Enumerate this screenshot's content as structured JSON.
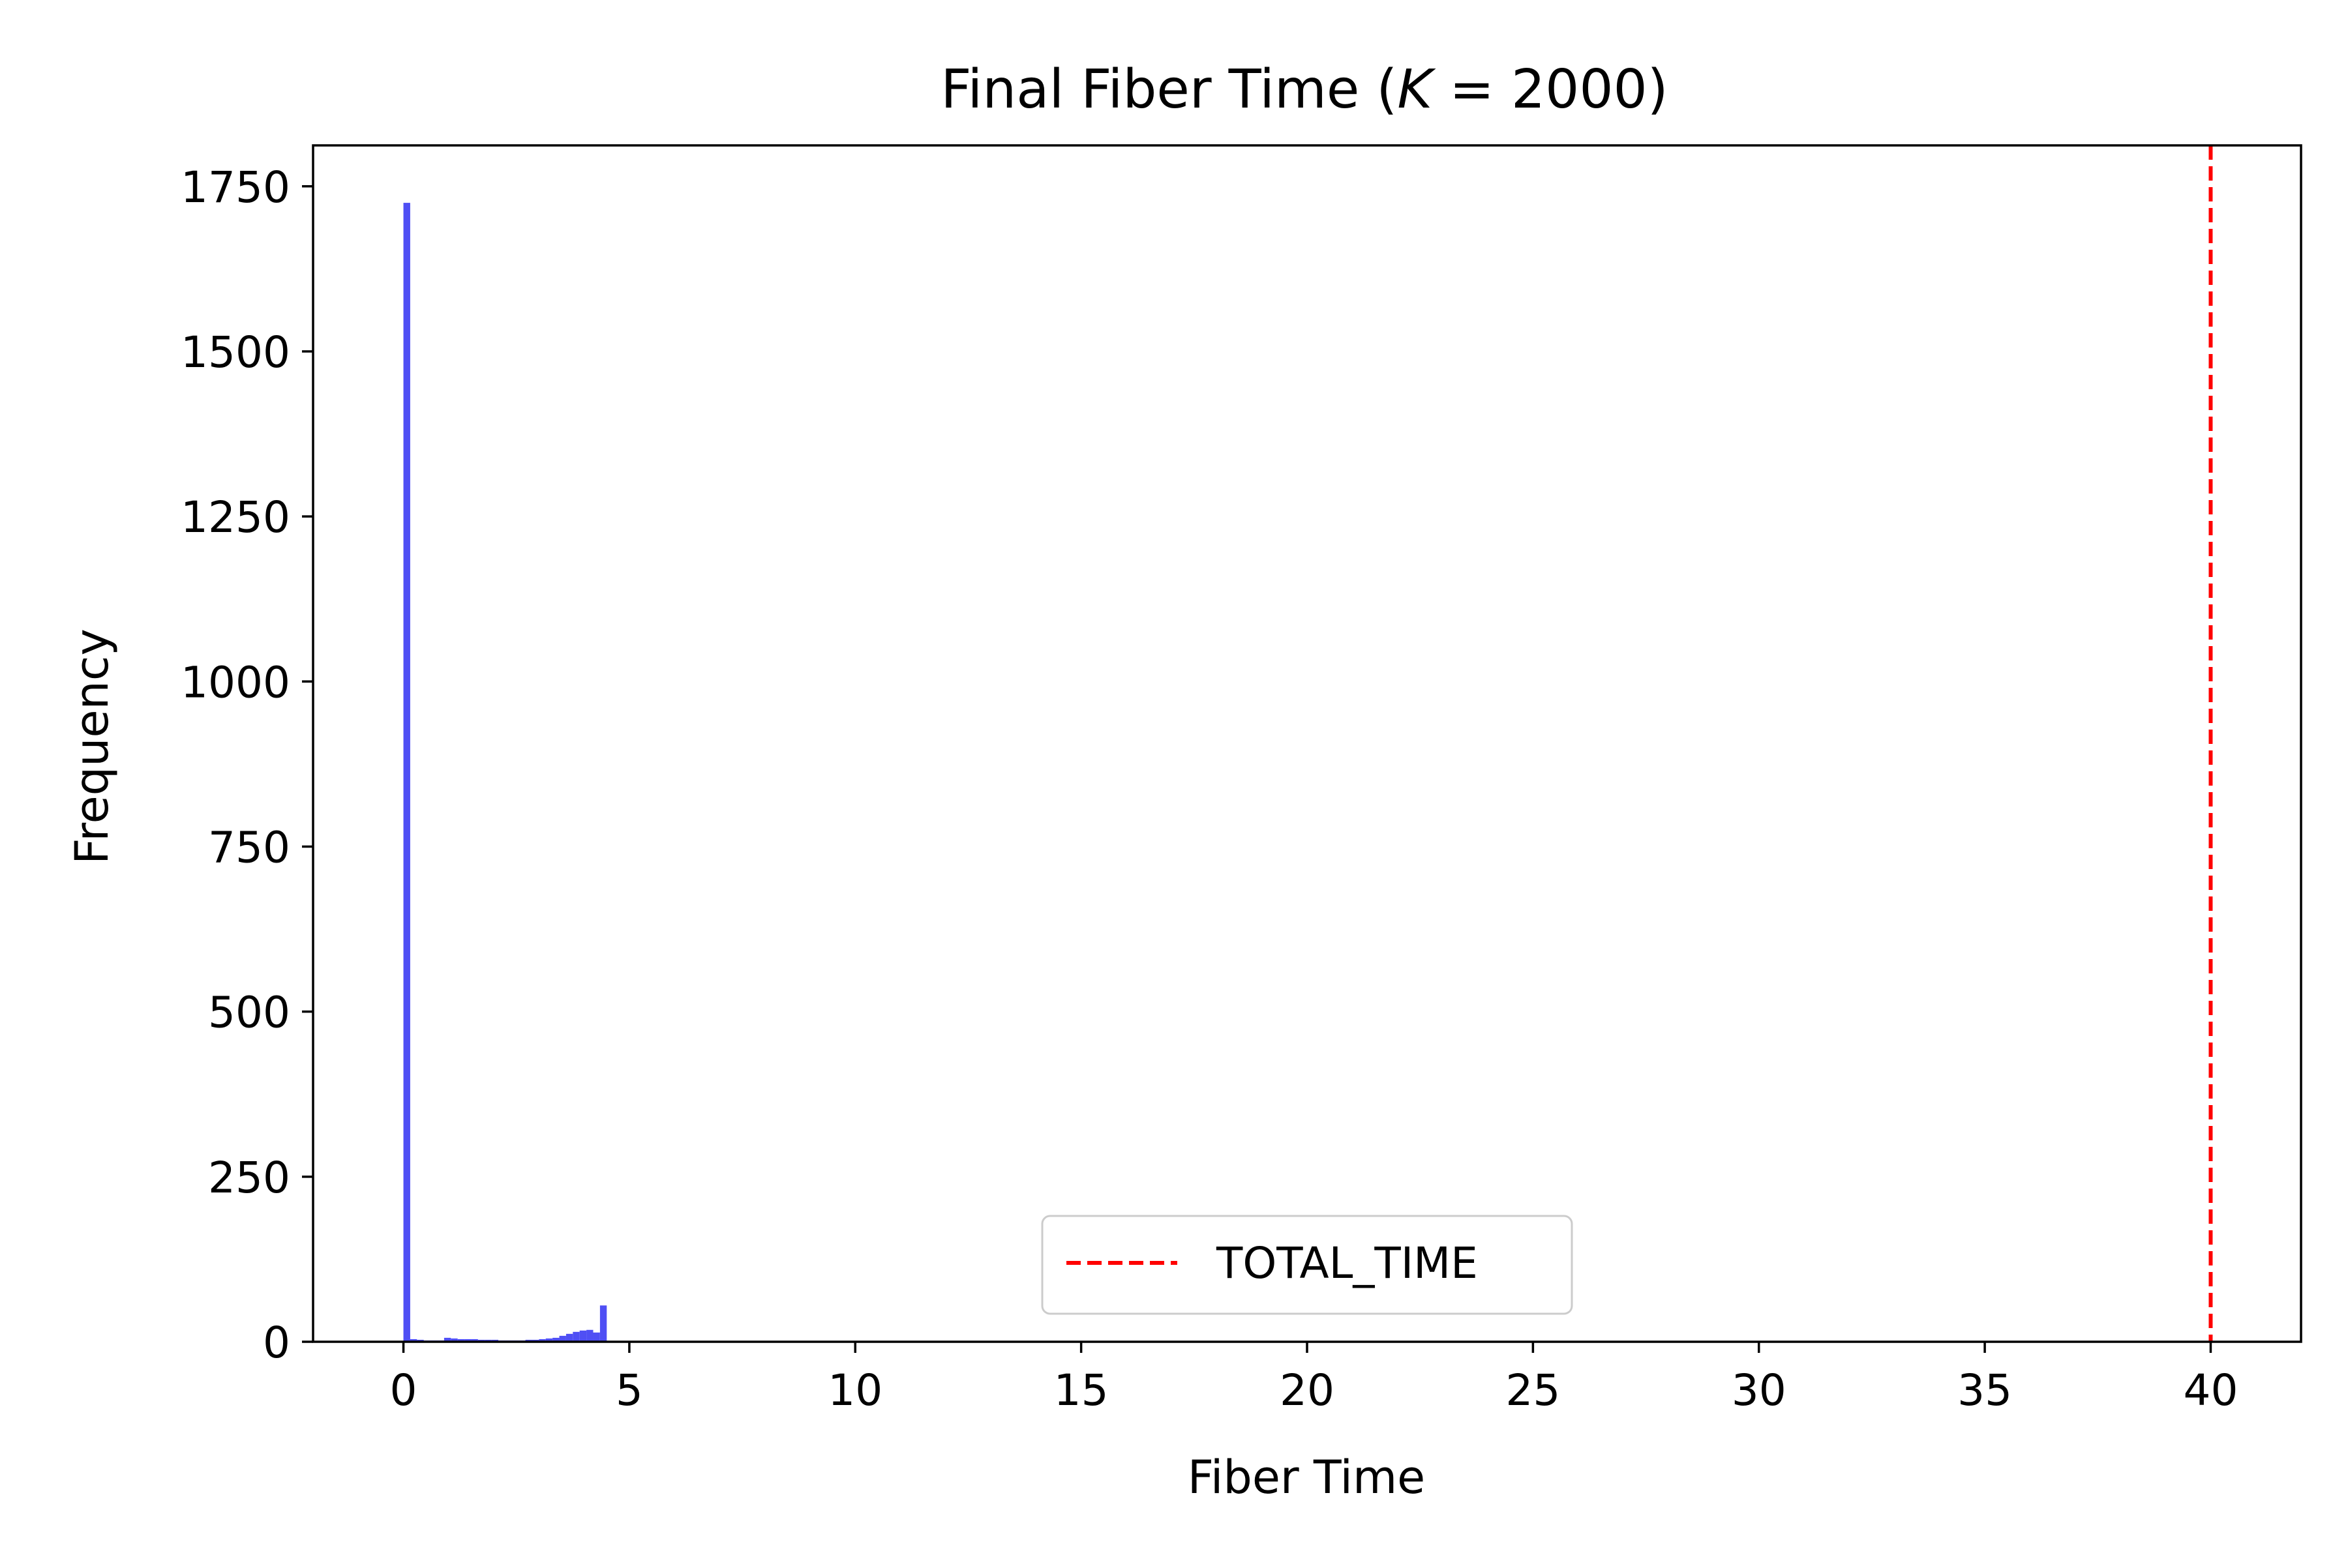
{
  "chart_data": {
    "type": "histogram",
    "title": {
      "prefix": "Final Fiber Time (",
      "variable": "K",
      "operator": " = ",
      "value": "2000",
      "suffix": ")"
    },
    "xlabel": "Fiber Time",
    "ylabel": "Frequency",
    "xlim": [
      -2,
      42
    ],
    "ylim": [
      0,
      1812
    ],
    "x_ticks": [
      0,
      5,
      10,
      15,
      20,
      25,
      30,
      35,
      40
    ],
    "y_ticks": [
      0,
      250,
      500,
      750,
      1000,
      1250,
      1500,
      1750
    ],
    "bin_width": 0.15,
    "bins": [
      {
        "x": 0.0,
        "count": 1725
      },
      {
        "x": 0.15,
        "count": 4
      },
      {
        "x": 0.3,
        "count": 3
      },
      {
        "x": 0.45,
        "count": 2
      },
      {
        "x": 0.6,
        "count": 2
      },
      {
        "x": 0.75,
        "count": 2
      },
      {
        "x": 0.9,
        "count": 6
      },
      {
        "x": 1.05,
        "count": 5
      },
      {
        "x": 1.2,
        "count": 4
      },
      {
        "x": 1.35,
        "count": 4
      },
      {
        "x": 1.5,
        "count": 4
      },
      {
        "x": 1.65,
        "count": 3
      },
      {
        "x": 1.8,
        "count": 3
      },
      {
        "x": 1.95,
        "count": 3
      },
      {
        "x": 2.1,
        "count": 2
      },
      {
        "x": 2.25,
        "count": 2
      },
      {
        "x": 2.4,
        "count": 2
      },
      {
        "x": 2.55,
        "count": 2
      },
      {
        "x": 2.7,
        "count": 3
      },
      {
        "x": 2.85,
        "count": 3
      },
      {
        "x": 3.0,
        "count": 4
      },
      {
        "x": 3.15,
        "count": 5
      },
      {
        "x": 3.3,
        "count": 6
      },
      {
        "x": 3.45,
        "count": 9
      },
      {
        "x": 3.6,
        "count": 12
      },
      {
        "x": 3.75,
        "count": 15
      },
      {
        "x": 3.9,
        "count": 17
      },
      {
        "x": 4.05,
        "count": 18
      },
      {
        "x": 4.2,
        "count": 14
      },
      {
        "x": 4.35,
        "count": 55
      }
    ],
    "bar_color": "#4f4ff4",
    "reference_line": {
      "x": 40,
      "label": "TOTAL_TIME",
      "color": "#ff0000",
      "style": "dashed"
    },
    "legend": {
      "position": "lower-center",
      "entries": [
        "TOTAL_TIME"
      ]
    },
    "grid": false
  }
}
